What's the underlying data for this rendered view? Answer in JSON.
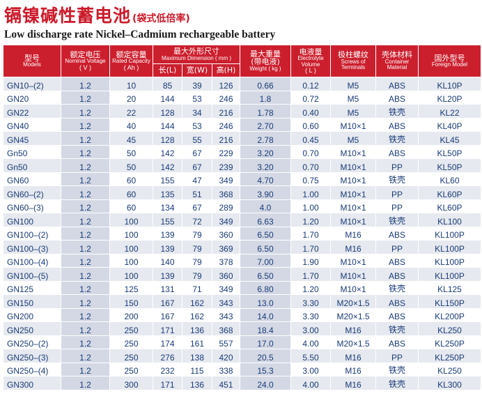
{
  "title": {
    "cn": "镉镍碱性蓄电池",
    "cn_sub": "(袋式低倍率)",
    "en": "Low discharge rate Nickel–Cadmium rechargeable battery"
  },
  "headers": {
    "model": {
      "cn": "型号",
      "en": "Models"
    },
    "voltage": {
      "cn": "额定电压",
      "en": "Nominal Voltage",
      "unit": "( V )"
    },
    "capacity": {
      "cn": "额定容量",
      "en": "Rated Capacity",
      "unit": "( Ah )"
    },
    "dimension": {
      "cn": "最大外形尺寸",
      "en": "Maximum Dimension ( mm )",
      "length": "长(L)",
      "width": "宽(W)",
      "height": "高(H)"
    },
    "weight": {
      "cn": "最大重量",
      "cn2": "(带电液)",
      "en": "Weight ( kg )"
    },
    "electrolyte": {
      "cn": "电液量",
      "en": "Electrolyte Volume",
      "unit": "( L )"
    },
    "terminals": {
      "cn": "极柱螺纹",
      "en": "Screws of Terminals"
    },
    "container": {
      "cn": "壳体材料",
      "en": "Container Material"
    },
    "foreign": {
      "cn": "国外型号",
      "en": "Foreign Model"
    }
  },
  "rows": [
    [
      "GN10–(2)",
      "1.2",
      "10",
      "85",
      "39",
      "126",
      "0.66",
      "0.12",
      "M5",
      "ABS",
      "KL10P"
    ],
    [
      "GN20",
      "1.2",
      "20",
      "144",
      "53",
      "246",
      "1.8",
      "0.72",
      "M5",
      "ABS",
      "KL20P"
    ],
    [
      "GN22",
      "1.2",
      "22",
      "128",
      "34",
      "216",
      "1.78",
      "0.40",
      "M5",
      "铁壳",
      "KL22"
    ],
    [
      "GN40",
      "1.2",
      "40",
      "144",
      "53",
      "246",
      "2.70",
      "0.60",
      "M10×1",
      "ABS",
      "KL40P"
    ],
    [
      "GN45",
      "1.2",
      "45",
      "128",
      "55",
      "216",
      "2.78",
      "0.45",
      "M5",
      "铁壳",
      "KL45"
    ],
    [
      "Gn50",
      "1.2",
      "50",
      "142",
      "67",
      "229",
      "3.20",
      "0.70",
      "M10×1",
      "ABS",
      "KL50P"
    ],
    [
      "Gn50",
      "1.2",
      "50",
      "142",
      "67",
      "239",
      "3.20",
      "0.70",
      "M10×1",
      "PP",
      "KL50P"
    ],
    [
      "GN60",
      "1.2",
      "60",
      "155",
      "47",
      "349",
      "4.70",
      "0.75",
      "M10×1",
      "铁壳",
      "KL60"
    ],
    [
      "GN60–(2)",
      "1.2",
      "60",
      "135",
      "51",
      "368",
      "3.90",
      "1.00",
      "M10×1",
      "PP",
      "KL60P"
    ],
    [
      "GN60–(3)",
      "1.2",
      "60",
      "134",
      "67",
      "289",
      "4.0",
      "1.00",
      "M10×1",
      "PP",
      "KL60P"
    ],
    [
      "GN100",
      "1.2",
      "100",
      "155",
      "72",
      "349",
      "6.63",
      "1.20",
      "M10×1",
      "铁壳",
      "KL100"
    ],
    [
      "GN100–(2)",
      "1.2",
      "100",
      "139",
      "79",
      "360",
      "6.50",
      "1.70",
      "M16",
      "ABS",
      "KL100P"
    ],
    [
      "GN100–(3)",
      "1.2",
      "100",
      "139",
      "79",
      "369",
      "6.50",
      "1.70",
      "M16",
      "PP",
      "KL100P"
    ],
    [
      "GN100–(4)",
      "1.2",
      "100",
      "140",
      "79",
      "378",
      "7.00",
      "1.90",
      "M10×1",
      "ABS",
      "KL100P"
    ],
    [
      "GN100–(5)",
      "1.2",
      "100",
      "139",
      "79",
      "360",
      "6.50",
      "1.70",
      "M10×1",
      "ABS",
      "KL100P"
    ],
    [
      "GN125",
      "1.2",
      "125",
      "131",
      "71",
      "349",
      "6.80",
      "1.20",
      "M10×1",
      "铁壳",
      "KL125"
    ],
    [
      "GN150",
      "1.2",
      "150",
      "167",
      "162",
      "343",
      "13.0",
      "3.30",
      "M20×1.5",
      "ABS",
      "KL150P"
    ],
    [
      "GN200",
      "1.2",
      "200",
      "167",
      "162",
      "343",
      "14.0",
      "3.30",
      "M20×1.5",
      "ABS",
      "KL200P"
    ],
    [
      "GN250",
      "1.2",
      "250",
      "171",
      "136",
      "368",
      "18.4",
      "3.00",
      "M16",
      "铁壳",
      "KL250"
    ],
    [
      "GN250–(2)",
      "1.2",
      "250",
      "174",
      "161",
      "557",
      "17.0",
      "4.00",
      "M20×1.5",
      "ABS",
      "KL250P"
    ],
    [
      "GN250–(3)",
      "1.2",
      "250",
      "276",
      "138",
      "420",
      "20.5",
      "5.50",
      "M16",
      "PP",
      "KL250P"
    ],
    [
      "GN250–(4)",
      "1.2",
      "250",
      "232",
      "115",
      "338",
      "15.3",
      "3.00",
      "M16",
      "铁壳",
      "KL250"
    ],
    [
      "GN300",
      "1.2",
      "300",
      "171",
      "136",
      "451",
      "24.0",
      "4.00",
      "M16",
      "铁壳",
      "KL300"
    ]
  ],
  "colors": {
    "header_red": "#cc1f2e",
    "title_red": "#cc1a2a",
    "cell_text": "#1a3a78",
    "stripe": "#e6e9ef",
    "voltage_col": "#d3d8e4"
  }
}
